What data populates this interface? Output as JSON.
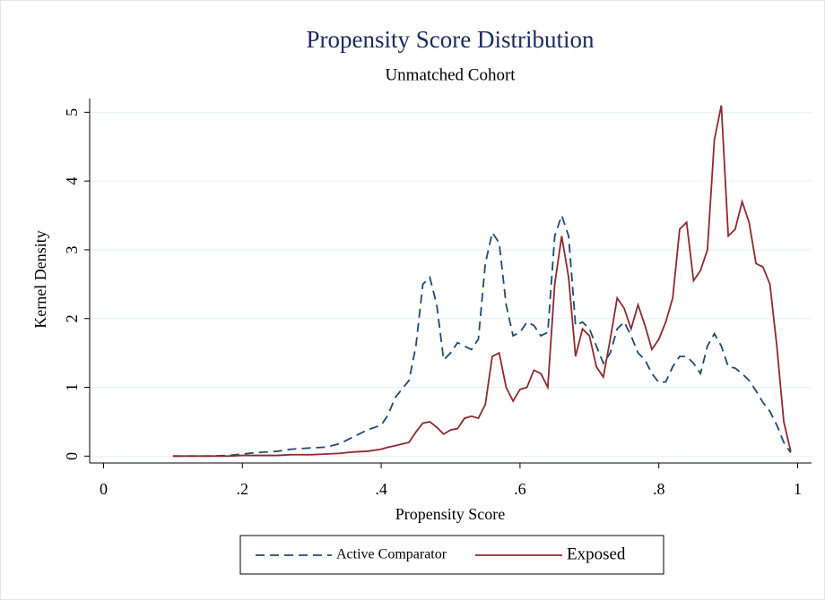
{
  "chart_data": {
    "type": "line",
    "title": "Propensity Score Distribution",
    "subtitle": "Unmatched Cohort",
    "x_label": "Propensity Score",
    "y_label": "Kernel Density",
    "x": [
      0.1,
      0.15,
      0.18,
      0.2,
      0.22,
      0.25,
      0.27,
      0.3,
      0.32,
      0.34,
      0.36,
      0.38,
      0.4,
      0.41,
      0.42,
      0.44,
      0.45,
      0.46,
      0.47,
      0.48,
      0.49,
      0.5,
      0.51,
      0.52,
      0.53,
      0.54,
      0.55,
      0.56,
      0.57,
      0.58,
      0.59,
      0.6,
      0.61,
      0.62,
      0.63,
      0.64,
      0.65,
      0.66,
      0.67,
      0.68,
      0.69,
      0.7,
      0.71,
      0.72,
      0.73,
      0.74,
      0.75,
      0.76,
      0.77,
      0.78,
      0.79,
      0.8,
      0.81,
      0.82,
      0.83,
      0.84,
      0.85,
      0.86,
      0.87,
      0.88,
      0.89,
      0.9,
      0.91,
      0.92,
      0.93,
      0.94,
      0.95,
      0.96,
      0.97,
      0.98,
      0.99
    ],
    "series": [
      {
        "name": "Active Comparator",
        "color": "#1f4a6e",
        "style": "dashed",
        "values": [
          0,
          0,
          0.01,
          0.03,
          0.05,
          0.07,
          0.1,
          0.12,
          0.13,
          0.18,
          0.28,
          0.38,
          0.45,
          0.6,
          0.85,
          1.1,
          1.6,
          2.5,
          2.6,
          2.2,
          1.4,
          1.5,
          1.65,
          1.6,
          1.55,
          1.7,
          2.8,
          3.25,
          3.1,
          2.2,
          1.75,
          1.8,
          1.95,
          1.9,
          1.75,
          1.8,
          3.2,
          3.5,
          3.2,
          1.9,
          1.95,
          1.85,
          1.6,
          1.35,
          1.5,
          1.85,
          1.95,
          1.75,
          1.5,
          1.4,
          1.2,
          1.07,
          1.08,
          1.3,
          1.45,
          1.45,
          1.35,
          1.2,
          1.6,
          1.78,
          1.6,
          1.3,
          1.28,
          1.2,
          1.1,
          0.95,
          0.78,
          0.65,
          0.45,
          0.2,
          0.05
        ]
      },
      {
        "name": "Exposed",
        "color": "#8b2a30",
        "style": "solid",
        "values": [
          0,
          0,
          0,
          0.01,
          0.01,
          0.01,
          0.02,
          0.02,
          0.03,
          0.04,
          0.06,
          0.07,
          0.1,
          0.13,
          0.15,
          0.2,
          0.35,
          0.48,
          0.5,
          0.42,
          0.32,
          0.38,
          0.4,
          0.55,
          0.58,
          0.55,
          0.75,
          1.45,
          1.5,
          1.0,
          0.8,
          0.97,
          1.0,
          1.25,
          1.2,
          1.0,
          2.5,
          3.2,
          2.6,
          1.45,
          1.85,
          1.75,
          1.3,
          1.15,
          1.7,
          2.3,
          2.15,
          1.85,
          2.2,
          1.9,
          1.55,
          1.7,
          1.95,
          2.3,
          3.3,
          3.4,
          2.55,
          2.7,
          3.0,
          4.6,
          5.1,
          3.2,
          3.3,
          3.7,
          3.4,
          2.8,
          2.75,
          2.5,
          1.6,
          0.5,
          0.07
        ]
      }
    ],
    "xlim": [
      -0.02,
      1.02
    ],
    "xticks": [
      0,
      {
        "value": 0.2,
        "label": ".2"
      },
      {
        "value": 0.4,
        "label": ".4"
      },
      {
        "value": 0.6,
        "label": ".6"
      },
      {
        "value": 0.8,
        "label": ".8"
      },
      1
    ],
    "ylim": [
      -0.1,
      5.2
    ],
    "yticks": [
      0,
      1,
      2,
      3,
      4,
      5
    ],
    "grid": true,
    "legend": "bottom"
  }
}
